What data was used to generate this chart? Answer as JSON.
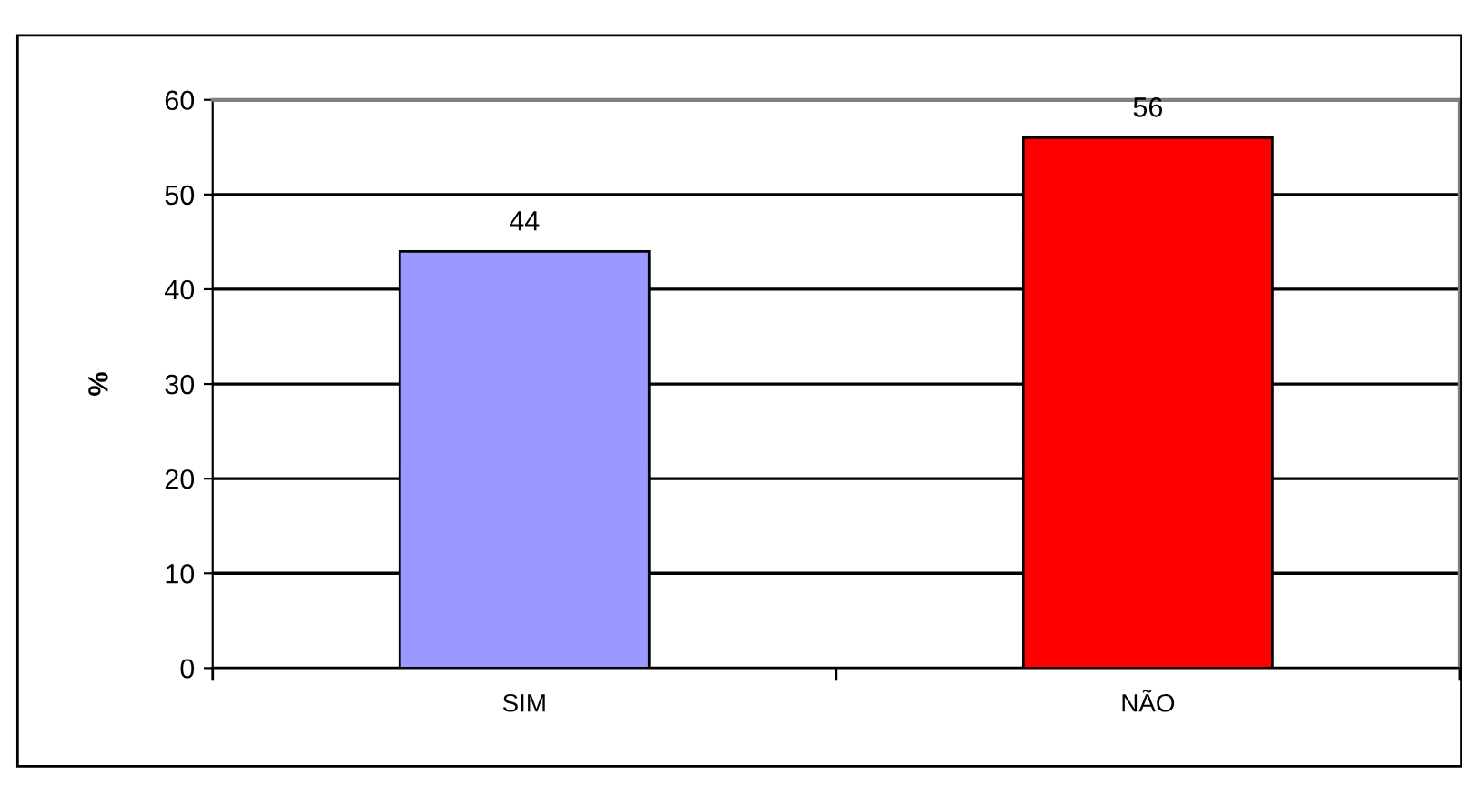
{
  "chart_data": {
    "type": "bar",
    "ylabel": "%",
    "categories": [
      "SIM",
      "NÃO"
    ],
    "values": [
      44,
      56
    ],
    "colors": [
      "#9999ff",
      "#ff0000"
    ],
    "ylim": [
      0,
      60
    ],
    "yticks": [
      0,
      10,
      20,
      30,
      40,
      50,
      60
    ],
    "grid": "y",
    "data_labels": true
  }
}
